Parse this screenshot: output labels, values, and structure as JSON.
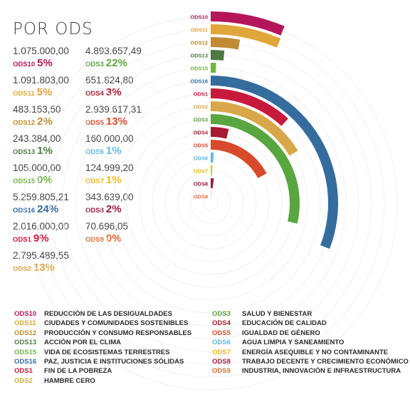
{
  "header": {
    "title": "POR ODS"
  },
  "chart_data": {
    "type": "radial-bar",
    "title": "POR ODS",
    "series": [
      {
        "code": "ODS10",
        "amount": "1.075.000,00",
        "value": 1075000.0,
        "percent": "5%",
        "color": "#b5165b"
      },
      {
        "code": "ODS11",
        "amount": "1.091.803,00",
        "value": 1091803.0,
        "percent": "5%",
        "color": "#e0a63a"
      },
      {
        "code": "ODS12",
        "amount": "483.153,50",
        "value": 483153.5,
        "percent": "2%",
        "color": "#c08b33"
      },
      {
        "code": "ODS13",
        "amount": "243.384,00",
        "value": 243384.0,
        "percent": "1%",
        "color": "#4d7a40"
      },
      {
        "code": "ODS15",
        "amount": "105.000,00",
        "value": 105000.0,
        "percent": "0%",
        "color": "#6fb544"
      },
      {
        "code": "ODS16",
        "amount": "5.259.805,21",
        "value": 5259805.21,
        "percent": "24%",
        "color": "#356c9e"
      },
      {
        "code": "ODS1",
        "amount": "2.016.000,00",
        "value": 2016000.0,
        "percent": "9%",
        "color": "#c8193c"
      },
      {
        "code": "ODS2",
        "amount": "2.795.489,55",
        "value": 2795489.55,
        "percent": "13%",
        "color": "#d9a649"
      },
      {
        "code": "ODS3",
        "amount": "4.893.657,49",
        "value": 4893657.49,
        "percent": "22%",
        "color": "#59a540"
      },
      {
        "code": "ODS4",
        "amount": "651.824,80",
        "value": 651824.8,
        "percent": "3%",
        "color": "#a71a2f"
      },
      {
        "code": "ODS5",
        "amount": "2.939.617,31",
        "value": 2939617.31,
        "percent": "13%",
        "color": "#d74b2c"
      },
      {
        "code": "ODS6",
        "amount": "160.000,00",
        "value": 160000.0,
        "percent": "1%",
        "color": "#5fb8e3"
      },
      {
        "code": "ODS7",
        "amount": "124.999,20",
        "value": 124999.2,
        "percent": "1%",
        "color": "#eabb1f"
      },
      {
        "code": "ODS8",
        "amount": "343.639,00",
        "value": 343639.0,
        "percent": "2%",
        "color": "#9c1b3d"
      },
      {
        "code": "ODS9",
        "amount": "70.696,05",
        "value": 70696.05,
        "percent": "0%",
        "color": "#e06c35"
      }
    ],
    "legend": [
      {
        "code": "ODS10",
        "name": "REDUCCIÓN DE LAS DESIGUALDADES"
      },
      {
        "code": "ODS11",
        "name": "CIUDADES Y COMUNIDADES SOSTENIBLES"
      },
      {
        "code": "ODS12",
        "name": "PRODUCCIÓN Y CONSUMO RESPONSABLES"
      },
      {
        "code": "ODS13",
        "name": "ACCIÓN POR EL CLIMA"
      },
      {
        "code": "ODS15",
        "name": "VIDA DE ECOSISTEMAS TERRESTRES"
      },
      {
        "code": "ODS16",
        "name": "PAZ, JUSTICIA E INSTITUCIONES SÓLIDAS"
      },
      {
        "code": "ODS1",
        "name": "FIN DE LA POBREZA"
      },
      {
        "code": "ODS2",
        "name": "HAMBRE CERO"
      },
      {
        "code": "ODS3",
        "name": "SALUD Y BIENESTAR"
      },
      {
        "code": "ODS4",
        "name": "EDUCACIÓN DE CALIDAD"
      },
      {
        "code": "ODS5",
        "name": "IGUALDAD DE GÉNERO"
      },
      {
        "code": "ODS6",
        "name": "AGUA LIMPIA Y SANEAMIENTO"
      },
      {
        "code": "ODS7",
        "name": "ENERGÍA ASEQUIBLE Y NO CONTAMINANTE"
      },
      {
        "code": "ODS8",
        "name": "TRABAJO DECENTE Y CRECIMIENTO ECONÓMICO"
      },
      {
        "code": "ODS9",
        "name": "INDUSTRIA, INNOVACIÓN E INFRAESTRUCTURA"
      }
    ]
  }
}
